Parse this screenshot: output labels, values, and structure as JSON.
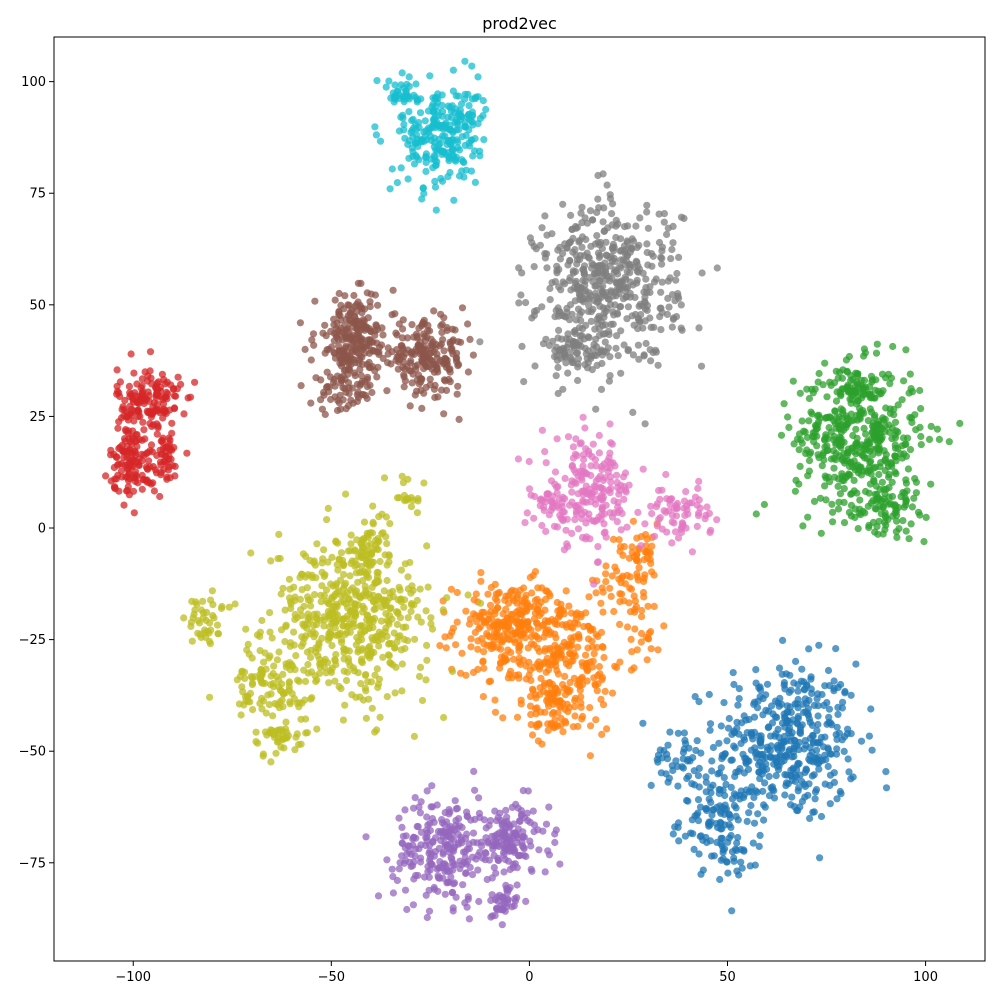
{
  "chart_data": {
    "type": "scatter",
    "title": "prod2vec",
    "xlabel": "",
    "ylabel": "",
    "xlim": [
      -120,
      115
    ],
    "ylim": [
      -97,
      110
    ],
    "x_ticks": [
      -100,
      -50,
      0,
      50,
      100
    ],
    "y_ticks": [
      -75,
      -50,
      -25,
      0,
      25,
      50,
      75,
      100
    ],
    "x_tick_labels": [
      "−100",
      "−50",
      "0",
      "50",
      "100"
    ],
    "y_tick_labels": [
      "−75",
      "−50",
      "−25",
      "0",
      "25",
      "50",
      "75",
      "100"
    ],
    "grid": false,
    "legend": "none",
    "marker_opacity": 0.75,
    "series": [
      {
        "color": "#1f77b4",
        "clusters": [
          {
            "cx": 65,
            "cy": -48,
            "sx": 9,
            "sy": 9,
            "n": 420
          },
          {
            "cx": 48,
            "cy": -65,
            "sx": 5,
            "sy": 5,
            "n": 110
          },
          {
            "cx": 52,
            "cy": -74,
            "sx": 2,
            "sy": 2,
            "n": 20
          },
          {
            "cx": 37,
            "cy": -52,
            "sx": 3,
            "sy": 3,
            "n": 40
          }
        ]
      },
      {
        "color": "#ff7f0e",
        "clusters": [
          {
            "cx": -5,
            "cy": -22,
            "sx": 7,
            "sy": 5,
            "n": 230
          },
          {
            "cx": 8,
            "cy": -30,
            "sx": 8,
            "sy": 8,
            "n": 260
          },
          {
            "cx": 5,
            "cy": -42,
            "sx": 3,
            "sy": 3,
            "n": 40
          },
          {
            "cx": 25,
            "cy": -12,
            "sx": 4,
            "sy": 5,
            "n": 60
          },
          {
            "cx": 28,
            "cy": -5,
            "sx": 3,
            "sy": 3,
            "n": 30
          },
          {
            "cx": 30,
            "cy": -25,
            "sx": 2,
            "sy": 2,
            "n": 12
          }
        ]
      },
      {
        "color": "#2ca02c",
        "clusters": [
          {
            "cx": 83,
            "cy": 20,
            "sx": 8,
            "sy": 8,
            "n": 430
          },
          {
            "cx": 90,
            "cy": 5,
            "sx": 4,
            "sy": 3,
            "n": 80
          },
          {
            "cx": 82,
            "cy": 32,
            "sx": 3,
            "sy": 2,
            "n": 50
          }
        ]
      },
      {
        "color": "#d62728",
        "clusters": [
          {
            "cx": -96,
            "cy": 28,
            "sx": 4,
            "sy": 4,
            "n": 160
          },
          {
            "cx": -100,
            "cy": 15,
            "sx": 3,
            "sy": 4,
            "n": 120
          },
          {
            "cx": -92,
            "cy": 15,
            "sx": 2,
            "sy": 3,
            "n": 40
          }
        ]
      },
      {
        "color": "#9467bd",
        "clusters": [
          {
            "cx": -22,
            "cy": -72,
            "sx": 6,
            "sy": 6,
            "n": 230
          },
          {
            "cx": -5,
            "cy": -70,
            "sx": 5,
            "sy": 4,
            "n": 150
          },
          {
            "cx": -7,
            "cy": -84,
            "sx": 2,
            "sy": 2,
            "n": 40
          }
        ]
      },
      {
        "color": "#8c564b",
        "clusters": [
          {
            "cx": -44,
            "cy": 42,
            "sx": 5,
            "sy": 5,
            "n": 240
          },
          {
            "cx": -26,
            "cy": 38,
            "sx": 5,
            "sy": 4,
            "n": 200
          },
          {
            "cx": -47,
            "cy": 30,
            "sx": 4,
            "sy": 2,
            "n": 50
          }
        ]
      },
      {
        "color": "#e377c2",
        "clusters": [
          {
            "cx": 15,
            "cy": 8,
            "sx": 6,
            "sy": 6,
            "n": 200
          },
          {
            "cx": 38,
            "cy": 3,
            "sx": 4,
            "sy": 3,
            "n": 70
          },
          {
            "cx": 5,
            "cy": 5,
            "sx": 2,
            "sy": 2,
            "n": 25
          }
        ]
      },
      {
        "color": "#7f7f7f",
        "clusters": [
          {
            "cx": 20,
            "cy": 55,
            "sx": 9,
            "sy": 9,
            "n": 480
          },
          {
            "cx": 12,
            "cy": 40,
            "sx": 4,
            "sy": 3,
            "n": 80
          }
        ]
      },
      {
        "color": "#bcbd22",
        "clusters": [
          {
            "cx": -45,
            "cy": -20,
            "sx": 10,
            "sy": 9,
            "n": 540
          },
          {
            "cx": -66,
            "cy": -35,
            "sx": 5,
            "sy": 4,
            "n": 100
          },
          {
            "cx": -82,
            "cy": -21,
            "sx": 2,
            "sy": 3,
            "n": 40
          },
          {
            "cx": -64,
            "cy": -47,
            "sx": 3,
            "sy": 2,
            "n": 40
          },
          {
            "cx": -41,
            "cy": -5,
            "sx": 2,
            "sy": 3,
            "n": 40
          },
          {
            "cx": -30,
            "cy": 8,
            "sx": 3,
            "sy": 3,
            "n": 20
          }
        ]
      },
      {
        "color": "#17becf",
        "clusters": [
          {
            "cx": -23,
            "cy": 88,
            "sx": 5,
            "sy": 6,
            "n": 230
          },
          {
            "cx": -32,
            "cy": 97,
            "sx": 2,
            "sy": 1.5,
            "n": 30
          },
          {
            "cx": -16,
            "cy": 93,
            "sx": 3,
            "sy": 3,
            "n": 30
          }
        ]
      }
    ]
  }
}
